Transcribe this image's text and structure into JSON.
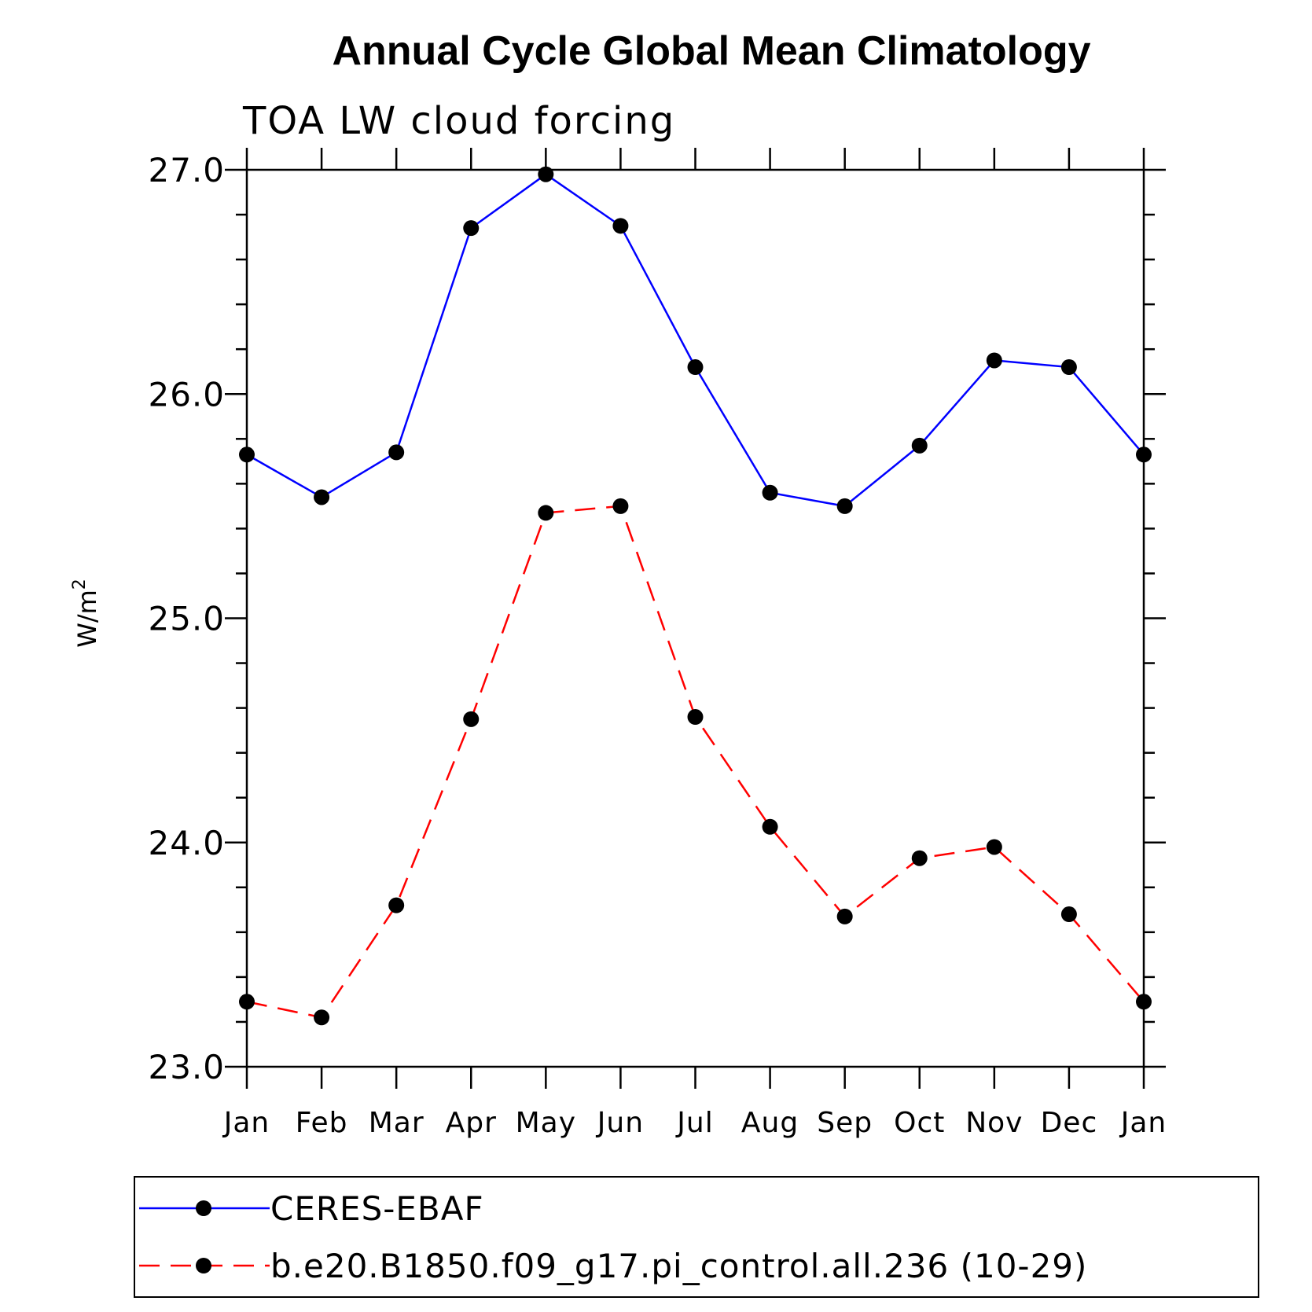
{
  "chart_data": {
    "type": "line",
    "title": "Annual Cycle Global Mean Climatology",
    "subtitle": "TOA LW cloud forcing",
    "ylabel": "W/m",
    "ylabel_sup": "2",
    "categories": [
      "Jan",
      "Feb",
      "Mar",
      "Apr",
      "May",
      "Jun",
      "Jul",
      "Aug",
      "Sep",
      "Oct",
      "Nov",
      "Dec",
      "Jan"
    ],
    "ylim": [
      23.0,
      27.0
    ],
    "yticks": [
      "27.0",
      "26.0",
      "25.0",
      "24.0",
      "23.0"
    ],
    "series": [
      {
        "name": "CERES-EBAF",
        "color": "#0000ff",
        "dash": "solid",
        "values": [
          25.73,
          25.54,
          25.74,
          26.74,
          26.98,
          26.75,
          26.12,
          25.56,
          25.5,
          25.77,
          26.15,
          26.12,
          25.73
        ]
      },
      {
        "name": "b.e20.B1850.f09_g17.pi_control.all.236 (10-29)",
        "color": "#ff0000",
        "dash": "dashed",
        "values": [
          23.29,
          23.22,
          23.72,
          24.55,
          25.47,
          25.5,
          24.56,
          24.07,
          23.67,
          23.93,
          23.98,
          23.68,
          23.29
        ]
      }
    ],
    "legend": "bottom",
    "grid": false
  }
}
